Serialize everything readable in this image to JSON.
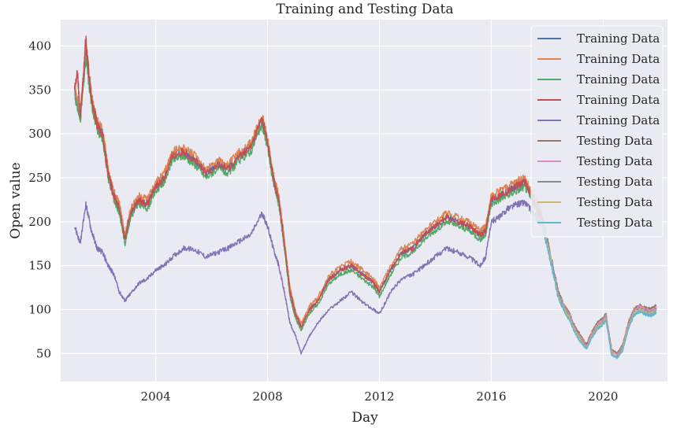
{
  "chart_data": {
    "type": "line",
    "title": "Training and Testing Data",
    "xlabel": "Day",
    "ylabel": "Open value",
    "x_ticks": [
      "2004",
      "2008",
      "2012",
      "2016",
      "2020"
    ],
    "y_ticks": [
      "50",
      "100",
      "150",
      "200",
      "250",
      "300",
      "350",
      "400"
    ],
    "xlim": [
      2000.6,
      2022.3
    ],
    "ylim": [
      18,
      430
    ],
    "grid": true,
    "legend_position": "top-right",
    "series": [
      {
        "name": "Training Data",
        "color": "#4c72b0",
        "role": "train",
        "offset": 0,
        "x": [
          2001.1,
          2001.3,
          2001.5,
          2001.7,
          2001.9,
          2002.1,
          2002.3,
          2002.5,
          2002.7,
          2002.9,
          2003.1,
          2003.4,
          2003.7,
          2004.0,
          2004.3,
          2004.6,
          2005.0,
          2005.4,
          2005.8,
          2006.2,
          2006.6,
          2007.0,
          2007.4,
          2007.8,
          2008.0,
          2008.2,
          2008.4,
          2008.6,
          2008.8,
          2009.0,
          2009.2,
          2009.5,
          2009.8,
          2010.2,
          2010.6,
          2011.0,
          2011.4,
          2011.8,
          2012.0,
          2012.4,
          2012.8,
          2013.2,
          2013.6,
          2014.0,
          2014.4,
          2014.8,
          2015.2,
          2015.6,
          2015.8,
          2016.0,
          2016.3,
          2016.6,
          2016.9,
          2017.2,
          2017.5,
          2017.8
        ],
        "y": [
          350,
          320,
          395,
          340,
          310,
          300,
          255,
          230,
          215,
          180,
          210,
          225,
          220,
          240,
          250,
          275,
          280,
          270,
          255,
          265,
          260,
          275,
          285,
          315,
          290,
          250,
          225,
          175,
          120,
          95,
          80,
          100,
          110,
          135,
          145,
          150,
          140,
          130,
          120,
          145,
          165,
          170,
          185,
          195,
          205,
          200,
          195,
          185,
          190,
          225,
          230,
          235,
          240,
          245,
          225,
          205
        ]
      },
      {
        "name": "Training Data",
        "color": "#dd8452",
        "role": "train",
        "offset": 3,
        "x": [
          2001.1,
          2001.3,
          2001.5,
          2001.7,
          2001.9,
          2002.1,
          2002.3,
          2002.5,
          2002.7,
          2002.9,
          2003.1,
          2003.4,
          2003.7,
          2004.0,
          2004.3,
          2004.6,
          2005.0,
          2005.4,
          2005.8,
          2006.2,
          2006.6,
          2007.0,
          2007.4,
          2007.8,
          2008.0,
          2008.2,
          2008.4,
          2008.6,
          2008.8,
          2009.0,
          2009.2,
          2009.5,
          2009.8,
          2010.2,
          2010.6,
          2011.0,
          2011.4,
          2011.8,
          2012.0,
          2012.4,
          2012.8,
          2013.2,
          2013.6,
          2014.0,
          2014.4,
          2014.8,
          2015.2,
          2015.6,
          2015.8,
          2016.0,
          2016.3,
          2016.6,
          2016.9,
          2017.2,
          2017.5,
          2017.8
        ],
        "y": [
          355,
          325,
          402,
          345,
          315,
          305,
          260,
          235,
          220,
          185,
          215,
          230,
          225,
          245,
          255,
          280,
          285,
          275,
          260,
          270,
          265,
          280,
          290,
          320,
          295,
          255,
          230,
          180,
          125,
          98,
          84,
          104,
          114,
          139,
          149,
          155,
          145,
          134,
          125,
          150,
          170,
          175,
          190,
          200,
          210,
          205,
          200,
          190,
          195,
          230,
          235,
          240,
          246,
          250,
          230,
          210
        ]
      },
      {
        "name": "Training Data",
        "color": "#55a868",
        "role": "train",
        "offset": -3,
        "x": [
          2001.1,
          2001.3,
          2001.5,
          2001.7,
          2001.9,
          2002.1,
          2002.3,
          2002.5,
          2002.7,
          2002.9,
          2003.1,
          2003.4,
          2003.7,
          2004.0,
          2004.3,
          2004.6,
          2005.0,
          2005.4,
          2005.8,
          2006.2,
          2006.6,
          2007.0,
          2007.4,
          2007.8,
          2008.0,
          2008.2,
          2008.4,
          2008.6,
          2008.8,
          2009.0,
          2009.2,
          2009.5,
          2009.8,
          2010.2,
          2010.6,
          2011.0,
          2011.4,
          2011.8,
          2012.0,
          2012.4,
          2012.8,
          2013.2,
          2013.6,
          2014.0,
          2014.4,
          2014.8,
          2015.2,
          2015.6,
          2015.8,
          2016.0,
          2016.3,
          2016.6,
          2016.9,
          2017.2,
          2017.5,
          2017.8
        ],
        "y": [
          345,
          315,
          385,
          335,
          305,
          295,
          250,
          225,
          210,
          175,
          205,
          220,
          215,
          235,
          245,
          270,
          275,
          265,
          250,
          260,
          255,
          270,
          280,
          310,
          285,
          245,
          220,
          170,
          115,
          90,
          76,
          96,
          106,
          130,
          140,
          145,
          135,
          125,
          115,
          140,
          160,
          165,
          180,
          190,
          200,
          195,
          190,
          180,
          185,
          220,
          225,
          230,
          235,
          240,
          220,
          200
        ]
      },
      {
        "name": "Training Data",
        "color": "#c44e52",
        "role": "train",
        "offset": 1,
        "x": [
          2001.1,
          2001.2,
          2001.3,
          2001.4,
          2001.5,
          2001.6,
          2001.7,
          2001.9,
          2002.1,
          2002.3,
          2002.5,
          2002.7,
          2002.9,
          2003.1,
          2003.4,
          2003.7,
          2004.0,
          2004.3,
          2004.6,
          2005.0,
          2005.4,
          2005.8,
          2006.2,
          2006.6,
          2007.0,
          2007.4,
          2007.8,
          2008.0,
          2008.2,
          2008.4,
          2008.6,
          2008.8,
          2009.0,
          2009.2,
          2009.5,
          2009.8,
          2010.2,
          2010.6,
          2011.0,
          2011.4,
          2011.8,
          2012.0,
          2012.4,
          2012.8,
          2013.2,
          2013.6,
          2014.0,
          2014.4,
          2014.8,
          2015.2,
          2015.6,
          2015.8,
          2016.0,
          2016.3,
          2016.6,
          2016.9,
          2017.2,
          2017.5,
          2017.8
        ],
        "y": [
          350,
          370,
          320,
          360,
          410,
          370,
          340,
          310,
          300,
          255,
          230,
          215,
          180,
          210,
          225,
          220,
          240,
          250,
          275,
          280,
          270,
          255,
          265,
          260,
          275,
          285,
          318,
          290,
          250,
          225,
          175,
          120,
          95,
          80,
          100,
          110,
          135,
          145,
          150,
          140,
          130,
          120,
          145,
          165,
          170,
          185,
          195,
          205,
          200,
          195,
          185,
          190,
          225,
          230,
          235,
          242,
          245,
          225,
          205
        ]
      },
      {
        "name": "Training Data",
        "color": "#8172b3",
        "role": "train",
        "offset": 0,
        "x": [
          2001.1,
          2001.3,
          2001.5,
          2001.7,
          2001.9,
          2002.1,
          2002.3,
          2002.5,
          2002.7,
          2002.9,
          2003.1,
          2003.4,
          2003.7,
          2004.0,
          2004.3,
          2004.6,
          2005.0,
          2005.4,
          2005.8,
          2006.2,
          2006.6,
          2007.0,
          2007.4,
          2007.8,
          2008.0,
          2008.2,
          2008.4,
          2008.6,
          2008.8,
          2009.0,
          2009.2,
          2009.5,
          2009.8,
          2010.2,
          2010.6,
          2011.0,
          2011.4,
          2011.8,
          2012.0,
          2012.4,
          2012.8,
          2013.2,
          2013.6,
          2014.0,
          2014.4,
          2014.8,
          2015.2,
          2015.6,
          2015.8,
          2016.0,
          2016.3,
          2016.6,
          2016.9,
          2017.2,
          2017.5,
          2017.8
        ],
        "y": [
          195,
          175,
          220,
          190,
          170,
          165,
          150,
          140,
          120,
          110,
          118,
          130,
          135,
          145,
          150,
          160,
          170,
          168,
          160,
          165,
          170,
          178,
          185,
          210,
          195,
          170,
          150,
          120,
          85,
          70,
          50,
          70,
          85,
          100,
          110,
          120,
          108,
          100,
          95,
          120,
          135,
          140,
          150,
          160,
          170,
          165,
          160,
          150,
          160,
          200,
          205,
          215,
          220,
          222,
          210,
          195
        ]
      },
      {
        "name": "Testing Data",
        "color": "#937860",
        "role": "test",
        "offset": 2,
        "x": [
          2017.8,
          2018.0,
          2018.2,
          2018.4,
          2018.6,
          2018.8,
          2019.0,
          2019.2,
          2019.4,
          2019.6,
          2019.8,
          2020.0,
          2020.1,
          2020.3,
          2020.5,
          2020.7,
          2020.9,
          2021.1,
          2021.3,
          2021.5,
          2021.7,
          2021.9
        ],
        "y": [
          205,
          180,
          150,
          120,
          105,
          95,
          80,
          70,
          60,
          75,
          85,
          90,
          95,
          55,
          50,
          60,
          85,
          100,
          105,
          102,
          100,
          104
        ]
      },
      {
        "name": "Testing Data",
        "color": "#da8bc3",
        "role": "test",
        "offset": 0,
        "x": [
          2017.8,
          2018.0,
          2018.2,
          2018.4,
          2018.6,
          2018.8,
          2019.0,
          2019.2,
          2019.4,
          2019.6,
          2019.8,
          2020.0,
          2020.1,
          2020.3,
          2020.5,
          2020.7,
          2020.9,
          2021.1,
          2021.3,
          2021.5,
          2021.7,
          2021.9
        ],
        "y": [
          203,
          178,
          148,
          118,
          103,
          93,
          78,
          68,
          58,
          73,
          83,
          88,
          93,
          53,
          48,
          58,
          83,
          98,
          103,
          100,
          98,
          102
        ]
      },
      {
        "name": "Testing Data",
        "color": "#8c8c8c",
        "role": "test",
        "offset": 0,
        "x": [
          2017.8,
          2018.0,
          2018.2,
          2018.4,
          2018.6,
          2018.8,
          2019.0,
          2019.2,
          2019.4,
          2019.6,
          2019.8,
          2020.0,
          2020.1,
          2020.3,
          2020.5,
          2020.7,
          2020.9,
          2021.1,
          2021.3,
          2021.5,
          2021.7,
          2021.9
        ],
        "y": [
          201,
          176,
          146,
          116,
          101,
          91,
          76,
          66,
          56,
          71,
          81,
          86,
          91,
          51,
          46,
          56,
          81,
          96,
          101,
          98,
          96,
          100
        ]
      },
      {
        "name": "Testing Data",
        "color": "#ccb974",
        "role": "test",
        "offset": 0,
        "x": [
          2017.8,
          2018.0,
          2018.2,
          2018.4,
          2018.6,
          2018.8,
          2019.0,
          2019.2,
          2019.4,
          2019.6,
          2019.8,
          2020.0,
          2020.1,
          2020.3,
          2020.5,
          2020.7,
          2020.9,
          2021.1,
          2021.3,
          2021.5,
          2021.7,
          2021.9
        ],
        "y": [
          200,
          175,
          145,
          115,
          100,
          90,
          75,
          65,
          55,
          70,
          80,
          85,
          90,
          50,
          45,
          55,
          80,
          95,
          100,
          97,
          95,
          99
        ]
      },
      {
        "name": "Testing Data",
        "color": "#64b5cd",
        "role": "test",
        "offset": 0,
        "x": [
          2017.8,
          2018.0,
          2018.2,
          2018.4,
          2018.6,
          2018.8,
          2019.0,
          2019.2,
          2019.4,
          2019.6,
          2019.8,
          2020.0,
          2020.1,
          2020.3,
          2020.5,
          2020.7,
          2020.9,
          2021.1,
          2021.3,
          2021.5,
          2021.7,
          2021.9
        ],
        "y": [
          198,
          172,
          143,
          113,
          98,
          88,
          73,
          63,
          55,
          68,
          78,
          83,
          88,
          48,
          45,
          53,
          78,
          93,
          98,
          95,
          93,
          97
        ]
      }
    ]
  }
}
